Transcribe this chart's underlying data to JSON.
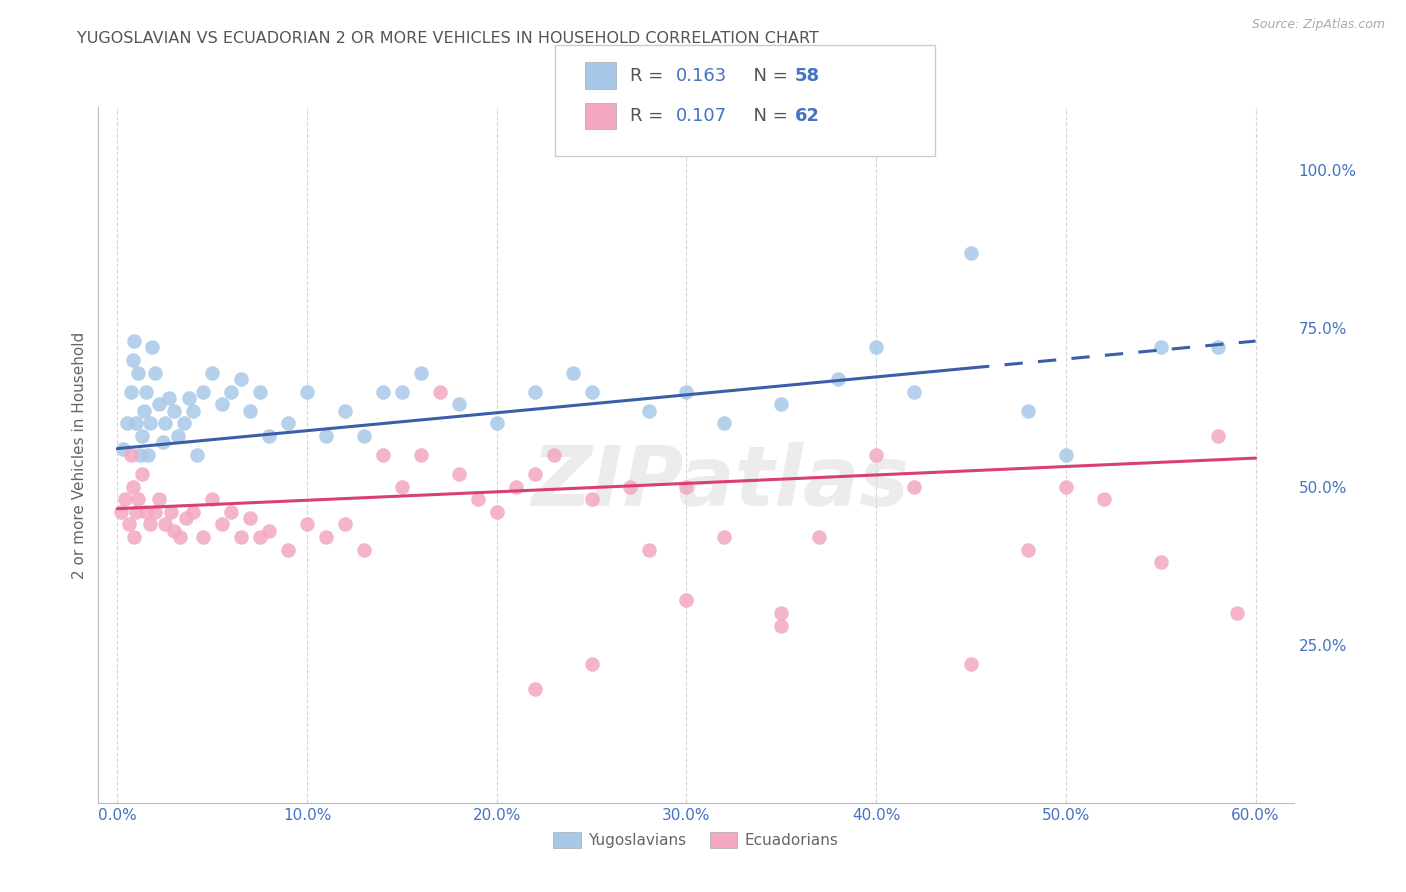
{
  "title": "YUGOSLAVIAN VS ECUADORIAN 2 OR MORE VEHICLES IN HOUSEHOLD CORRELATION CHART",
  "source": "Source: ZipAtlas.com",
  "ylabel": "2 or more Vehicles in Household",
  "x_tick_labels": [
    "0.0%",
    "10.0%",
    "20.0%",
    "30.0%",
    "40.0%",
    "50.0%",
    "60.0%"
  ],
  "x_tick_vals": [
    0.0,
    10.0,
    20.0,
    30.0,
    40.0,
    50.0,
    60.0
  ],
  "y_tick_labels": [
    "25.0%",
    "50.0%",
    "75.0%",
    "100.0%"
  ],
  "y_tick_vals": [
    25.0,
    50.0,
    75.0,
    100.0
  ],
  "xlim": [
    -1.0,
    62.0
  ],
  "ylim": [
    0.0,
    110.0
  ],
  "blue_color": "#a8c8e8",
  "pink_color": "#f4a8c0",
  "blue_line_color": "#3a5fa8",
  "pink_line_color": "#d84070",
  "axis_color": "#4472c4",
  "title_color": "#555555",
  "blue_R": "0.163",
  "blue_N": "58",
  "pink_R": "0.107",
  "pink_N": "62",
  "blue_x": [
    0.3,
    0.5,
    0.7,
    0.8,
    0.9,
    1.0,
    1.1,
    1.2,
    1.3,
    1.4,
    1.5,
    1.6,
    1.7,
    1.8,
    2.0,
    2.2,
    2.4,
    2.5,
    2.7,
    3.0,
    3.2,
    3.5,
    3.8,
    4.0,
    4.2,
    4.5,
    5.0,
    5.5,
    6.0,
    6.5,
    7.0,
    7.5,
    8.0,
    9.0,
    10.0,
    11.0,
    12.0,
    13.0,
    14.0,
    15.0,
    16.0,
    18.0,
    20.0,
    22.0,
    24.0,
    25.0,
    28.0,
    30.0,
    32.0,
    35.0,
    38.0,
    40.0,
    42.0,
    45.0,
    48.0,
    50.0,
    55.0,
    58.0
  ],
  "blue_y": [
    56.0,
    60.0,
    65.0,
    70.0,
    73.0,
    60.0,
    68.0,
    55.0,
    58.0,
    62.0,
    65.0,
    55.0,
    60.0,
    72.0,
    68.0,
    63.0,
    57.0,
    60.0,
    64.0,
    62.0,
    58.0,
    60.0,
    64.0,
    62.0,
    55.0,
    65.0,
    68.0,
    63.0,
    65.0,
    67.0,
    62.0,
    65.0,
    58.0,
    60.0,
    65.0,
    58.0,
    62.0,
    58.0,
    65.0,
    65.0,
    68.0,
    63.0,
    60.0,
    65.0,
    68.0,
    65.0,
    62.0,
    65.0,
    60.0,
    63.0,
    67.0,
    72.0,
    65.0,
    87.0,
    62.0,
    55.0,
    72.0,
    72.0
  ],
  "pink_x": [
    0.2,
    0.4,
    0.6,
    0.7,
    0.8,
    0.9,
    1.0,
    1.1,
    1.3,
    1.5,
    1.7,
    2.0,
    2.2,
    2.5,
    2.8,
    3.0,
    3.3,
    3.6,
    4.0,
    4.5,
    5.0,
    5.5,
    6.0,
    6.5,
    7.0,
    7.5,
    8.0,
    9.0,
    10.0,
    11.0,
    12.0,
    13.0,
    14.0,
    15.0,
    16.0,
    17.0,
    18.0,
    19.0,
    20.0,
    21.0,
    22.0,
    23.0,
    25.0,
    27.0,
    28.0,
    30.0,
    32.0,
    35.0,
    37.0,
    40.0,
    42.0,
    45.0,
    48.0,
    50.0,
    52.0,
    55.0,
    58.0,
    59.0,
    22.0,
    25.0,
    30.0,
    35.0
  ],
  "pink_y": [
    46.0,
    48.0,
    44.0,
    55.0,
    50.0,
    42.0,
    46.0,
    48.0,
    52.0,
    46.0,
    44.0,
    46.0,
    48.0,
    44.0,
    46.0,
    43.0,
    42.0,
    45.0,
    46.0,
    42.0,
    48.0,
    44.0,
    46.0,
    42.0,
    45.0,
    42.0,
    43.0,
    40.0,
    44.0,
    42.0,
    44.0,
    40.0,
    55.0,
    50.0,
    55.0,
    65.0,
    52.0,
    48.0,
    46.0,
    50.0,
    52.0,
    55.0,
    48.0,
    50.0,
    40.0,
    50.0,
    42.0,
    30.0,
    42.0,
    55.0,
    50.0,
    22.0,
    40.0,
    50.0,
    48.0,
    38.0,
    58.0,
    30.0,
    18.0,
    22.0,
    32.0,
    28.0
  ],
  "blue_trend_x0": 0.0,
  "blue_trend_x1": 60.0,
  "blue_trend_y0": 56.0,
  "blue_trend_y1": 73.0,
  "blue_dashed_start": 45.0,
  "pink_trend_x0": 0.0,
  "pink_trend_x1": 60.0,
  "pink_trend_y0": 46.5,
  "pink_trend_y1": 54.5,
  "watermark": "ZIPatlas",
  "background_color": "#ffffff",
  "grid_color": "#cccccc",
  "legend_labels": [
    "Yugoslavians",
    "Ecuadorians"
  ]
}
